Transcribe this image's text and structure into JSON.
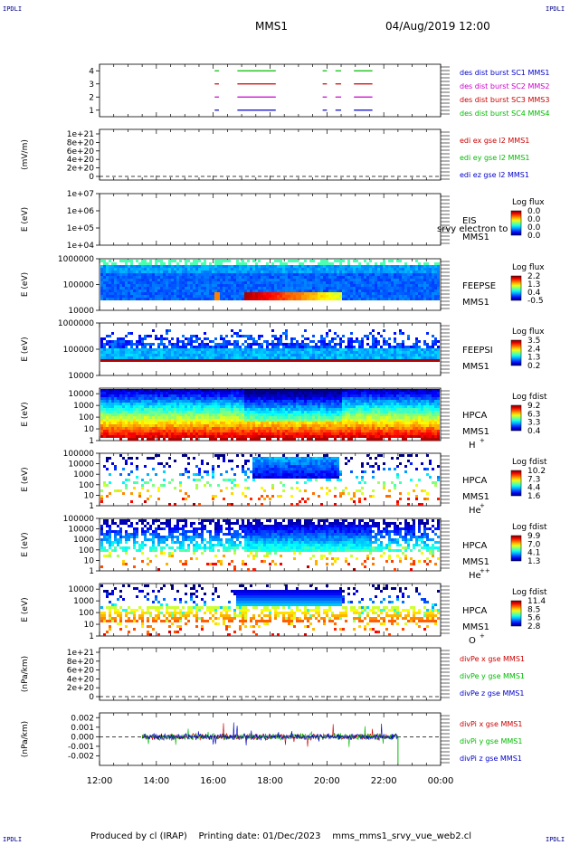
{
  "header": {
    "spacecraft": "MMS1",
    "date": "04/Aug/2019 12:00",
    "corner_label": "IPDLI"
  },
  "footer": {
    "produced_by": "Produced by cl (IRAP)",
    "printing_date": "Printing date: 01/Dec/2023",
    "script": "mms_mms1_srvy_vue_web2.cl"
  },
  "chart_data": [
    {
      "id": "burst",
      "type": "line",
      "yticks": [
        "1",
        "2",
        "3",
        "4"
      ],
      "ylim": [
        0.5,
        4.5
      ],
      "legend": [
        {
          "text": "des dist burst SC1 MMS1",
          "color": "#0000cc"
        },
        {
          "text": "des dist burst SC2 MMS2",
          "color": "#cc00cc"
        },
        {
          "text": "des dist burst SC3 MMS3",
          "color": "#cc0000"
        },
        {
          "text": "des dist burst SC4 MMS4",
          "color": "#00bb00"
        }
      ],
      "series": [
        {
          "y": 4,
          "color": "#00bb00",
          "segments": [
            [
              16.05,
              16.2
            ],
            [
              16.85,
              18.2
            ],
            [
              19.85,
              20.0
            ],
            [
              20.3,
              20.5
            ],
            [
              20.95,
              21.6
            ]
          ]
        },
        {
          "y": 3,
          "color": "#cc0000",
          "segments": [
            [
              16.05,
              16.2
            ],
            [
              16.85,
              18.2
            ],
            [
              19.85,
              20.0
            ],
            [
              20.3,
              20.5
            ],
            [
              20.95,
              21.6
            ]
          ]
        },
        {
          "y": 2,
          "color": "#cc00cc",
          "segments": [
            [
              16.05,
              16.2
            ],
            [
              16.85,
              18.2
            ],
            [
              19.85,
              20.0
            ],
            [
              20.3,
              20.5
            ],
            [
              20.95,
              21.6
            ]
          ]
        },
        {
          "y": 1,
          "color": "#0000cc",
          "segments": [
            [
              16.05,
              16.2
            ],
            [
              16.85,
              18.2
            ],
            [
              19.85,
              20.0
            ],
            [
              20.3,
              20.5
            ],
            [
              20.95,
              21.6
            ]
          ]
        }
      ]
    },
    {
      "id": "edi",
      "type": "line",
      "ylabel": "(mV/m)",
      "yticks": [
        "0",
        "2e+20",
        "4e+20",
        "6e+20",
        "8e+20",
        "1e+21"
      ],
      "ylim": [
        0,
        1e+21
      ],
      "legend": [
        {
          "text": "edi ex gse l2 MMS1",
          "color": "#cc0000"
        },
        {
          "text": "edi ey gse l2 MMS1",
          "color": "#00bb00"
        },
        {
          "text": "edi ez gse l2 MMS1",
          "color": "#0000cc"
        }
      ]
    },
    {
      "id": "eis",
      "type": "heatmap",
      "ylabel": "E (eV)",
      "yticks": [
        "1e+04",
        "1e+05",
        "1e+06",
        "1e+07"
      ],
      "ylim": [
        10000.0,
        10000000.0
      ],
      "yscale": "log",
      "instrument": "EIS",
      "instrument2": "MMS1",
      "extra_label": "srvy electron to",
      "colorbar_title": "Log flux",
      "colorbar_ticks": [
        "0.0",
        "0.0",
        "0.0",
        "0.0"
      ]
    },
    {
      "id": "feepse",
      "type": "heatmap",
      "ylabel": "E (eV)",
      "yticks": [
        "10000",
        "100000",
        "1000000"
      ],
      "ylim": [
        10000,
        1000000
      ],
      "yscale": "log",
      "instrument": "FEEPSE",
      "instrument2": "MMS1",
      "colorbar_title": "Log flux",
      "colorbar_ticks": [
        "2.2",
        "1.3",
        "0.4",
        "-0.5"
      ]
    },
    {
      "id": "feepsi",
      "type": "heatmap",
      "ylabel": "E (eV)",
      "yticks": [
        "10000",
        "100000",
        "1000000"
      ],
      "ylim": [
        10000,
        1000000
      ],
      "yscale": "log",
      "instrument": "FEEPSI",
      "instrument2": "MMS1",
      "colorbar_title": "Log flux",
      "colorbar_ticks": [
        "3.5",
        "2.4",
        "1.3",
        "0.2"
      ]
    },
    {
      "id": "hpca_h",
      "type": "heatmap",
      "ylabel": "E (eV)",
      "yticks": [
        "1",
        "10",
        "100",
        "1000",
        "10000"
      ],
      "ylim": [
        1,
        30000
      ],
      "yscale": "log",
      "instrument": "HPCA",
      "instrument2": "MMS1",
      "species": "H",
      "charge": "+",
      "colorbar_title": "Log fdist",
      "colorbar_ticks": [
        "9.2",
        "6.3",
        "3.3",
        "0.4"
      ]
    },
    {
      "id": "hpca_he1",
      "type": "heatmap",
      "ylabel": "E (eV)",
      "yticks": [
        "1",
        "10",
        "100",
        "1000",
        "10000",
        "100000"
      ],
      "ylim": [
        1,
        100000
      ],
      "yscale": "log",
      "instrument": "HPCA",
      "instrument2": "MMS1",
      "species": "He",
      "charge": "+",
      "colorbar_title": "Log fdist",
      "colorbar_ticks": [
        "10.2",
        "7.3",
        "4.4",
        "1.6"
      ]
    },
    {
      "id": "hpca_he2",
      "type": "heatmap",
      "ylabel": "E (eV)",
      "yticks": [
        "1",
        "10",
        "100",
        "1000",
        "10000",
        "100000"
      ],
      "ylim": [
        1,
        100000
      ],
      "yscale": "log",
      "instrument": "HPCA",
      "instrument2": "MMS1",
      "species": "He",
      "charge": "++",
      "colorbar_title": "Log fdist",
      "colorbar_ticks": [
        "9.9",
        "7.0",
        "4.1",
        "1.3"
      ]
    },
    {
      "id": "hpca_o",
      "type": "heatmap",
      "ylabel": "E (eV)",
      "yticks": [
        "1",
        "10",
        "100",
        "1000",
        "10000"
      ],
      "ylim": [
        1,
        30000
      ],
      "yscale": "log",
      "instrument": "HPCA",
      "instrument2": "MMS1",
      "species": "O",
      "charge": "+",
      "colorbar_title": "Log fdist",
      "colorbar_ticks": [
        "11.4",
        "8.5",
        "5.6",
        "2.8"
      ]
    },
    {
      "id": "divpe",
      "type": "line",
      "ylabel": "(nPa/km)",
      "yticks": [
        "0",
        "2e+20",
        "4e+20",
        "6e+20",
        "8e+20",
        "1e+21"
      ],
      "ylim": [
        0,
        1e+21
      ],
      "legend": [
        {
          "text": "divPe x gse MMS1",
          "color": "#cc0000"
        },
        {
          "text": "divPe y gse MMS1",
          "color": "#00bb00"
        },
        {
          "text": "divPe z gse MMS1",
          "color": "#0000cc"
        }
      ]
    },
    {
      "id": "divpi",
      "type": "line",
      "ylabel": "(nPa/km)",
      "yticks": [
        "-0.002",
        "-0.001",
        "0.000",
        "0.001",
        "0.002"
      ],
      "ylim": [
        -0.003,
        0.0025
      ],
      "legend": [
        {
          "text": "divPi x gse MMS1",
          "color": "#cc0000"
        },
        {
          "text": "divPi y gse MMS1",
          "color": "#00bb00"
        },
        {
          "text": "divPi z gse MMS1",
          "color": "#0000cc"
        }
      ],
      "data_range_hours": [
        13.5,
        22.5
      ]
    }
  ],
  "xaxis": {
    "range_hours": [
      12,
      24
    ],
    "ticks": [
      "12:00",
      "14:00",
      "16:00",
      "18:00",
      "20:00",
      "22:00",
      "00:00"
    ]
  }
}
